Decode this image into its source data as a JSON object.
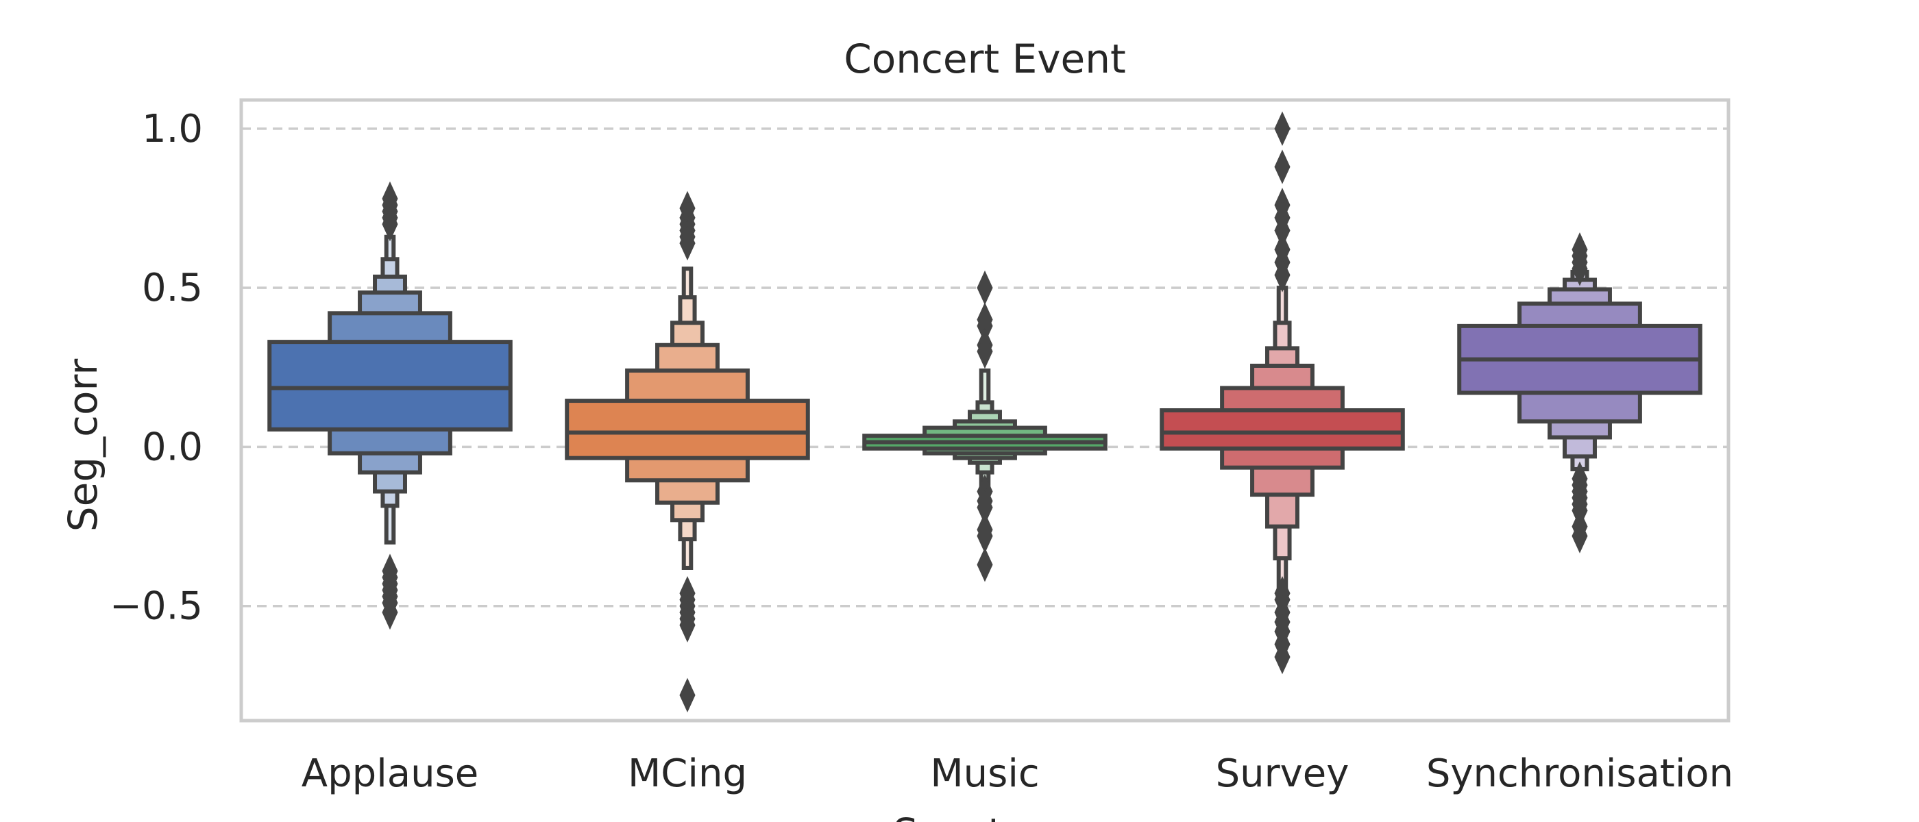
{
  "chart_data": {
    "type": "boxen",
    "title": "Concert Event",
    "xlabel": "Seg_type",
    "ylabel": "Seg_corr",
    "ylim": [
      -0.86,
      1.09
    ],
    "yticks": [
      1.0,
      0.5,
      0.0,
      -0.5
    ],
    "ytick_labels": [
      "1.0",
      "0.5",
      "0.0",
      "−0.5"
    ],
    "grid": "horizontal dashed",
    "categories": [
      "Applause",
      "MCing",
      "Music",
      "Survey",
      "Synchronisation"
    ],
    "series": [
      {
        "category": "Applause",
        "color": "#4c72b0",
        "median": 0.185,
        "boxes": [
          {
            "low": 0.055,
            "high": 0.33,
            "width": 1.0
          },
          {
            "low": -0.02,
            "high": 0.42,
            "width": 0.5
          },
          {
            "low": -0.08,
            "high": 0.485,
            "width": 0.25
          },
          {
            "low": -0.14,
            "high": 0.535,
            "width": 0.125
          },
          {
            "low": -0.185,
            "high": 0.59,
            "width": 0.06
          },
          {
            "low": -0.3,
            "high": 0.66,
            "width": 0.03
          }
        ],
        "outliers": [
          0.78,
          0.76,
          0.74,
          0.72,
          0.7,
          -0.39,
          -0.41,
          -0.43,
          -0.45,
          -0.47,
          -0.49,
          -0.52
        ]
      },
      {
        "category": "MCing",
        "color": "#dd8452",
        "median": 0.045,
        "boxes": [
          {
            "low": -0.035,
            "high": 0.145,
            "width": 1.0
          },
          {
            "low": -0.105,
            "high": 0.24,
            "width": 0.5
          },
          {
            "low": -0.175,
            "high": 0.32,
            "width": 0.25
          },
          {
            "low": -0.23,
            "high": 0.39,
            "width": 0.125
          },
          {
            "low": -0.29,
            "high": 0.47,
            "width": 0.06
          },
          {
            "low": -0.38,
            "high": 0.56,
            "width": 0.03
          }
        ],
        "outliers": [
          0.75,
          0.72,
          0.7,
          0.68,
          0.66,
          0.64,
          -0.46,
          -0.48,
          -0.5,
          -0.52,
          -0.54,
          -0.56,
          -0.78
        ]
      },
      {
        "category": "Music",
        "color": "#55a868",
        "median": 0.015,
        "boxes": [
          {
            "low": -0.005,
            "high": 0.035,
            "width": 1.0
          },
          {
            "low": -0.02,
            "high": 0.06,
            "width": 0.5
          },
          {
            "low": -0.035,
            "high": 0.08,
            "width": 0.25
          },
          {
            "low": -0.05,
            "high": 0.11,
            "width": 0.125
          },
          {
            "low": -0.08,
            "high": 0.14,
            "width": 0.06
          },
          {
            "low": -0.14,
            "high": 0.24,
            "width": 0.03
          }
        ],
        "outliers": [
          0.5,
          0.4,
          0.38,
          0.32,
          0.3,
          -0.14,
          -0.17,
          -0.19,
          -0.26,
          -0.28,
          -0.37
        ]
      },
      {
        "category": "Survey",
        "color": "#c44e52",
        "median": 0.045,
        "boxes": [
          {
            "low": -0.005,
            "high": 0.115,
            "width": 1.0
          },
          {
            "low": -0.065,
            "high": 0.185,
            "width": 0.5
          },
          {
            "low": -0.15,
            "high": 0.255,
            "width": 0.25
          },
          {
            "low": -0.25,
            "high": 0.31,
            "width": 0.125
          },
          {
            "low": -0.35,
            "high": 0.39,
            "width": 0.06
          },
          {
            "low": -0.45,
            "high": 0.5,
            "width": 0.03
          }
        ],
        "outliers": [
          1.0,
          0.88,
          0.76,
          0.72,
          0.68,
          0.62,
          0.58,
          0.54,
          -0.46,
          -0.48,
          -0.52,
          -0.55,
          -0.58,
          -0.62,
          -0.66
        ]
      },
      {
        "category": "Synchronisation",
        "color": "#8172b3",
        "median": 0.275,
        "boxes": [
          {
            "low": 0.17,
            "high": 0.38,
            "width": 1.0
          },
          {
            "low": 0.08,
            "high": 0.45,
            "width": 0.5
          },
          {
            "low": 0.03,
            "high": 0.495,
            "width": 0.25
          },
          {
            "low": -0.03,
            "high": 0.525,
            "width": 0.125
          },
          {
            "low": -0.07,
            "high": 0.55,
            "width": 0.06
          }
        ],
        "outliers": [
          0.62,
          0.6,
          0.58,
          0.56,
          -0.1,
          -0.12,
          -0.14,
          -0.16,
          -0.18,
          -0.2,
          -0.25,
          -0.28
        ]
      }
    ]
  }
}
